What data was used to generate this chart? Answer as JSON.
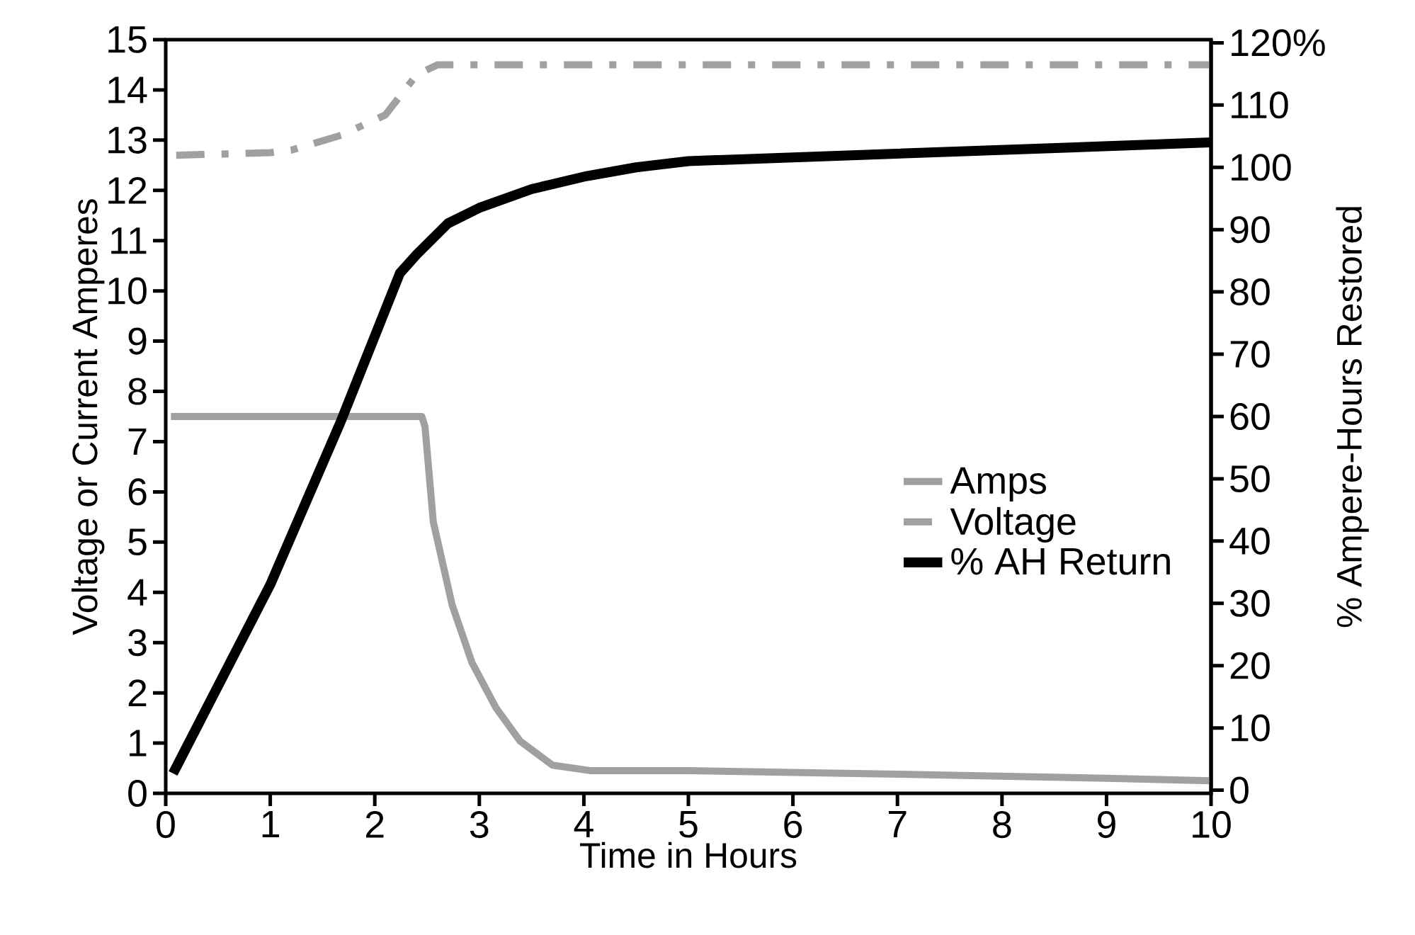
{
  "chart_data": {
    "type": "line",
    "xlabel": "Time in Hours",
    "ylabel": "Voltage or Current Amperes",
    "y2label": "% Ampere-Hours Restored",
    "xlim": [
      0,
      10
    ],
    "xticks": [
      0,
      1,
      2,
      3,
      4,
      5,
      6,
      7,
      8,
      9,
      10
    ],
    "ylim": [
      0,
      15
    ],
    "yticks": [
      0,
      1,
      2,
      3,
      4,
      5,
      6,
      7,
      8,
      9,
      10,
      11,
      12,
      13,
      14,
      15
    ],
    "y2lim": [
      -0.5,
      120.5
    ],
    "y2ticks": [
      0,
      10,
      20,
      30,
      40,
      50,
      60,
      70,
      80,
      90,
      100,
      110,
      {
        "value": 120,
        "label": "120%"
      }
    ],
    "legend": "right",
    "grid": false,
    "series": [
      {
        "name": "Amps",
        "color": "#a0a0a0",
        "line_style": "solid",
        "x": [
          0.05,
          2.45,
          2.48,
          2.56,
          2.74,
          2.93,
          3.16,
          3.39,
          3.7,
          4.07,
          5,
          7,
          9,
          10
        ],
        "values": [
          7.5,
          7.5,
          7.3,
          5.4,
          3.75,
          2.6,
          1.7,
          1.04,
          0.56,
          0.45,
          0.45,
          0.38,
          0.3,
          0.25
        ]
      },
      {
        "name": "Voltage",
        "color": "#a0a0a0",
        "line_style": "dashed",
        "x": [
          0.1,
          1,
          1.2,
          1.68,
          2.1,
          2.4,
          2.6,
          10
        ],
        "values": [
          12.7,
          12.75,
          12.8,
          13.1,
          13.5,
          14.3,
          14.5,
          14.5
        ]
      },
      {
        "name": "% AH Return",
        "color": "#000000",
        "line_style": "solid",
        "axis": "y2",
        "x": [
          0.07,
          1,
          1.67,
          2.24,
          2.4,
          2.7,
          3,
          3.5,
          4,
          4.5,
          5,
          10
        ],
        "values": [
          2.7,
          33,
          59,
          83,
          86,
          91,
          93.5,
          96.5,
          98.5,
          100,
          101,
          104
        ]
      }
    ]
  }
}
